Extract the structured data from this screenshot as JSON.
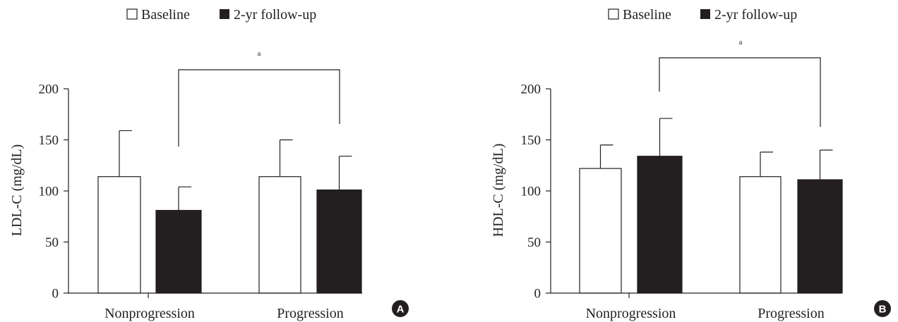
{
  "chart_data": [
    {
      "type": "bar",
      "panel_label": "A",
      "categories": [
        "Nonprogression",
        "Progression"
      ],
      "series": [
        {
          "name": "Baseline",
          "values": [
            114,
            114
          ],
          "errors": [
            45,
            36
          ],
          "color": "#ffffff"
        },
        {
          "name": "2-yr follow-up",
          "values": [
            81,
            101
          ],
          "errors": [
            23,
            33
          ],
          "color": "#231f20"
        }
      ],
      "ylabel": "LDL-C (mg/dL)",
      "ylim": [
        0,
        200
      ],
      "yticks": [
        0,
        50,
        100,
        150,
        200
      ],
      "grid": false,
      "legend": "top",
      "significance": {
        "label": "a",
        "between": [
          "Nonprogression 2-yr follow-up",
          "Progression 2-yr follow-up"
        ]
      }
    },
    {
      "type": "bar",
      "panel_label": "B",
      "categories": [
        "Nonprogression",
        "Progression"
      ],
      "series": [
        {
          "name": "Baseline",
          "values": [
            122,
            114
          ],
          "errors": [
            23,
            24
          ],
          "color": "#ffffff"
        },
        {
          "name": "2-yr follow-up",
          "values": [
            134,
            111
          ],
          "errors": [
            37,
            29
          ],
          "color": "#231f20"
        }
      ],
      "ylabel": "HDL-C (mg/dL)",
      "ylim": [
        0,
        200
      ],
      "yticks": [
        0,
        50,
        100,
        150,
        200
      ],
      "grid": false,
      "legend": "top",
      "significance": {
        "label": "a",
        "between": [
          "Nonprogression 2-yr follow-up",
          "Progression 2-yr follow-up"
        ]
      }
    }
  ]
}
